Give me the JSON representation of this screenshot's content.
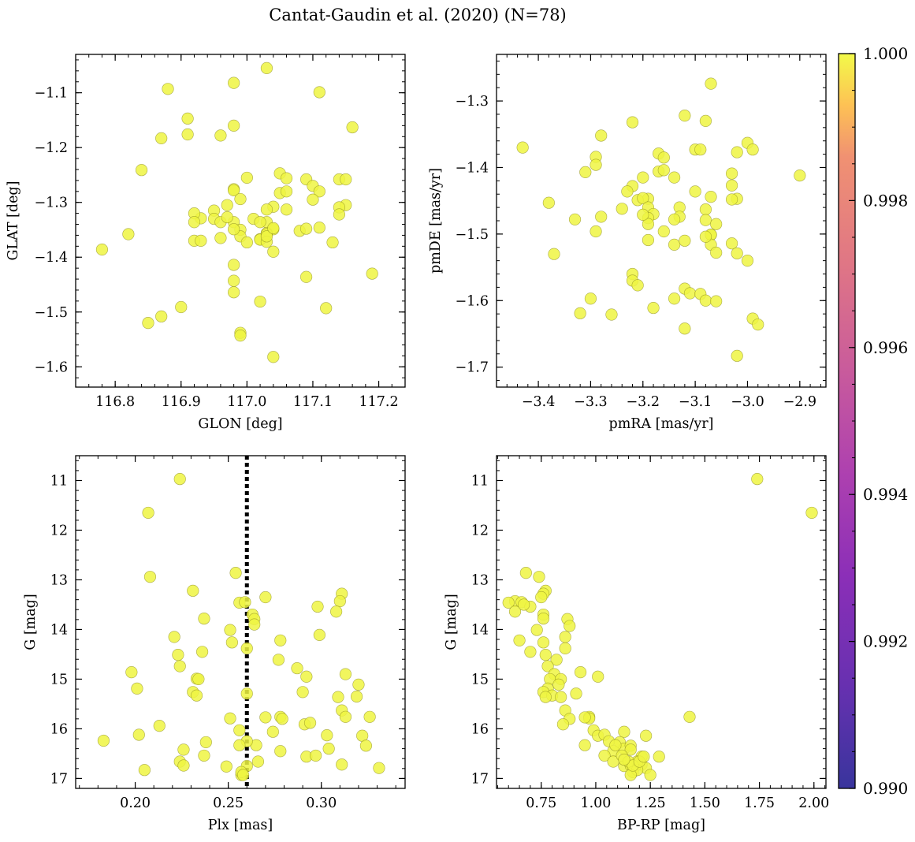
{
  "figure": {
    "suptitle": "Cantat-Gaudin et al. (2020) (N=78)"
  },
  "colors": {
    "point_fill": "#eef542",
    "point_edge": "#8a8a20",
    "axis": "#000000",
    "vline": "#000000"
  },
  "colorbar": {
    "colormap": "plasma",
    "range": [
      0.99,
      1.0
    ],
    "tick_labels": [
      "0.990",
      "0.992",
      "0.994",
      "0.996",
      "0.998",
      "1.000"
    ],
    "tick_values": [
      0.99,
      0.992,
      0.994,
      0.996,
      0.998,
      1.0
    ]
  },
  "chart_data": [
    {
      "type": "scatter",
      "xlabel": "GLON [deg]",
      "ylabel": "GLAT [deg]",
      "xlim": [
        116.74,
        117.24
      ],
      "ylim": [
        -1.637,
        -1.03
      ],
      "y_inverted": false,
      "grid": false,
      "xticks": [
        116.8,
        116.9,
        117.0,
        117.1,
        117.2
      ],
      "xtick_labels": [
        "116.8",
        "116.9",
        "117.0",
        "117.1",
        "117.2"
      ],
      "yticks": [
        -1.6,
        -1.5,
        -1.4,
        -1.3,
        -1.2,
        -1.1
      ],
      "ytick_labels": [
        "−1.6",
        "−1.5",
        "−1.4",
        "−1.3",
        "−1.2",
        "−1.1"
      ],
      "x_minor_step": 0.02,
      "y_minor_step": 0.02,
      "x": [
        117.03,
        116.98,
        116.88,
        117.11,
        116.91,
        117.16,
        116.91,
        116.87,
        116.96,
        116.98,
        116.84,
        116.98,
        117.0,
        117.09,
        117.05,
        117.06,
        117.1,
        117.14,
        117.15,
        116.98,
        116.99,
        117.15,
        117.11,
        116.95,
        117.11,
        116.93,
        116.92,
        117.04,
        117.03,
        117.01,
        116.95,
        117.02,
        117.04,
        116.98,
        116.99,
        117.03,
        116.97,
        117.1,
        117.14,
        117.02,
        116.82,
        117.02,
        116.96,
        117.08,
        116.99,
        117.03,
        116.78,
        117.0,
        117.05,
        117.03,
        116.92,
        116.98,
        116.98,
        117.09,
        117.04,
        116.96,
        116.93,
        116.97,
        117.06,
        117.13,
        117.03,
        116.98,
        117.19,
        116.98,
        117.02,
        117.14,
        116.9,
        116.87,
        116.85,
        116.99,
        117.04,
        116.99,
        116.92,
        117.09,
        117.12,
        117.03,
        117.06,
        117.04
      ],
      "y": [
        -1.055,
        -1.082,
        -1.093,
        -1.099,
        -1.147,
        -1.163,
        -1.176,
        -1.183,
        -1.178,
        -1.16,
        -1.241,
        -1.276,
        -1.255,
        -1.258,
        -1.247,
        -1.256,
        -1.27,
        -1.258,
        -1.258,
        -1.278,
        -1.294,
        -1.305,
        -1.28,
        -1.315,
        -1.346,
        -1.329,
        -1.32,
        -1.308,
        -1.336,
        -1.33,
        -1.33,
        -1.336,
        -1.349,
        -1.336,
        -1.35,
        -1.356,
        -1.305,
        -1.295,
        -1.309,
        -1.367,
        -1.358,
        -1.368,
        -1.365,
        -1.352,
        -1.362,
        -1.358,
        -1.386,
        -1.373,
        -1.283,
        -1.313,
        -1.37,
        -1.349,
        -1.414,
        -1.348,
        -1.39,
        -1.336,
        -1.37,
        -1.327,
        -1.313,
        -1.373,
        -1.372,
        -1.443,
        -1.43,
        -1.464,
        -1.481,
        -1.322,
        -1.491,
        -1.508,
        -1.52,
        -1.538,
        -1.582,
        -1.543,
        -1.336,
        -1.436,
        -1.493,
        -1.362,
        -1.28,
        -1.347
      ]
    },
    {
      "type": "scatter",
      "xlabel": "pmRA [mas/yr]",
      "ylabel": "pmDE [mas/yr]",
      "xlim": [
        -3.48,
        -2.85
      ],
      "ylim": [
        -1.73,
        -1.23
      ],
      "y_inverted": false,
      "grid": false,
      "xticks": [
        -3.4,
        -3.3,
        -3.2,
        -3.1,
        -3.0,
        -2.9
      ],
      "xtick_labels": [
        "−3.4",
        "−3.3",
        "−3.2",
        "−3.1",
        "−3.0",
        "−2.9"
      ],
      "yticks": [
        -1.7,
        -1.6,
        -1.5,
        -1.4,
        -1.3
      ],
      "ytick_labels": [
        "−1.7",
        "−1.6",
        "−1.5",
        "−1.4",
        "−1.3"
      ],
      "x_minor_step": 0.02,
      "y_minor_step": 0.02,
      "x": [
        -3.07,
        -3.43,
        -3.28,
        -3.22,
        -3.12,
        -3.08,
        -3.0,
        -3.02,
        -2.99,
        -3.29,
        -3.29,
        -3.31,
        -3.17,
        -3.16,
        -3.1,
        -3.09,
        -3.03,
        -3.2,
        -3.22,
        -3.23,
        -3.14,
        -3.03,
        -3.17,
        -3.16,
        -3.1,
        -3.02,
        -3.07,
        -3.19,
        -3.21,
        -3.2,
        -3.13,
        -3.19,
        -3.03,
        -3.38,
        -3.24,
        -3.18,
        -3.08,
        -3.13,
        -3.08,
        -3.14,
        -3.19,
        -3.28,
        -3.19,
        -3.16,
        -3.06,
        -3.2,
        -3.07,
        -3.07,
        -2.9,
        -3.33,
        -3.29,
        -3.19,
        -3.37,
        -3.14,
        -3.07,
        -3.06,
        -3.03,
        -3.0,
        -3.12,
        -3.08,
        -3.02,
        -2.99,
        -3.22,
        -3.22,
        -3.21,
        -3.12,
        -3.11,
        -3.09,
        -3.08,
        -3.3,
        -3.06,
        -3.18,
        -3.14,
        -3.32,
        -3.26,
        -3.12,
        -3.02,
        -2.98
      ],
      "y": [
        -1.274,
        -1.37,
        -1.352,
        -1.332,
        -1.322,
        -1.33,
        -1.363,
        -1.377,
        -1.373,
        -1.384,
        -1.396,
        -1.407,
        -1.379,
        -1.385,
        -1.373,
        -1.373,
        -1.409,
        -1.415,
        -1.428,
        -1.436,
        -1.415,
        -1.427,
        -1.406,
        -1.404,
        -1.436,
        -1.447,
        -1.444,
        -1.447,
        -1.449,
        -1.446,
        -1.46,
        -1.46,
        -1.448,
        -1.453,
        -1.462,
        -1.47,
        -1.463,
        -1.474,
        -1.479,
        -1.478,
        -1.476,
        -1.474,
        -1.485,
        -1.496,
        -1.485,
        -1.471,
        -1.501,
        -1.501,
        -1.412,
        -1.478,
        -1.496,
        -1.509,
        -1.53,
        -1.516,
        -1.516,
        -1.528,
        -1.514,
        -1.54,
        -1.51,
        -1.504,
        -1.529,
        -1.627,
        -1.56,
        -1.57,
        -1.577,
        -1.582,
        -1.589,
        -1.59,
        -1.6,
        -1.597,
        -1.601,
        -1.611,
        -1.597,
        -1.619,
        -1.621,
        -1.642,
        -1.683,
        -1.636
      ]
    },
    {
      "type": "scatter",
      "xlabel": "Plx [mas]",
      "ylabel": "G [mag]",
      "xlim": [
        0.168,
        0.345
      ],
      "ylim": [
        17.2,
        10.5
      ],
      "y_inverted": true,
      "grid": false,
      "vline": {
        "x": 0.26,
        "style": "dotted"
      },
      "xticks": [
        0.2,
        0.25,
        0.3
      ],
      "xtick_labels": [
        "0.20",
        "0.25",
        "0.30"
      ],
      "yticks": [
        11,
        12,
        13,
        14,
        15,
        16,
        17
      ],
      "ytick_labels": [
        "11",
        "12",
        "13",
        "14",
        "15",
        "16",
        "17"
      ],
      "x_minor_step": 0.01,
      "y_minor_step": 0.2,
      "x": [
        0.224,
        0.207,
        0.208,
        0.254,
        0.231,
        0.256,
        0.259,
        0.27,
        0.263,
        0.311,
        0.31,
        0.298,
        0.264,
        0.264,
        0.251,
        0.237,
        0.308,
        0.299,
        0.221,
        0.223,
        0.252,
        0.26,
        0.278,
        0.236,
        0.224,
        0.287,
        0.277,
        0.233,
        0.234,
        0.198,
        0.292,
        0.313,
        0.32,
        0.231,
        0.201,
        0.233,
        0.29,
        0.309,
        0.319,
        0.26,
        0.311,
        0.27,
        0.251,
        0.213,
        0.278,
        0.274,
        0.291,
        0.313,
        0.326,
        0.279,
        0.238,
        0.322,
        0.202,
        0.294,
        0.183,
        0.303,
        0.265,
        0.304,
        0.256,
        0.226,
        0.237,
        0.26,
        0.292,
        0.297,
        0.224,
        0.266,
        0.256,
        0.331,
        0.249,
        0.26,
        0.257,
        0.226,
        0.278,
        0.257,
        0.258,
        0.205,
        0.324,
        0.311
      ],
      "y": [
        10.97,
        11.65,
        12.94,
        12.86,
        13.22,
        13.46,
        13.45,
        13.35,
        13.7,
        13.28,
        13.43,
        13.54,
        13.79,
        13.9,
        14.01,
        13.78,
        13.64,
        14.11,
        14.15,
        14.51,
        14.26,
        14.38,
        14.22,
        14.45,
        14.74,
        14.78,
        14.61,
        14.99,
        15.0,
        14.86,
        14.95,
        14.9,
        15.11,
        15.26,
        15.19,
        15.33,
        15.26,
        15.36,
        15.35,
        15.29,
        15.63,
        15.77,
        15.79,
        15.94,
        15.76,
        16.06,
        15.91,
        15.76,
        15.76,
        15.8,
        16.27,
        16.14,
        16.12,
        15.88,
        16.24,
        16.13,
        16.33,
        16.4,
        16.03,
        16.42,
        16.54,
        16.25,
        16.56,
        16.54,
        16.66,
        16.66,
        16.33,
        16.79,
        16.76,
        16.75,
        16.93,
        16.74,
        16.45,
        16.87,
        16.93,
        16.83,
        16.34,
        16.72
      ]
    },
    {
      "type": "scatter",
      "xlabel": "BP-RP [mag]",
      "ylabel": "G [mag]",
      "xlim": [
        0.545,
        2.055
      ],
      "ylim": [
        17.2,
        10.5
      ],
      "y_inverted": true,
      "grid": false,
      "xticks": [
        0.75,
        1.0,
        1.25,
        1.5,
        1.75,
        2.0
      ],
      "xtick_labels": [
        "0.75",
        "1.00",
        "1.25",
        "1.50",
        "1.75",
        "2.00"
      ],
      "yticks": [
        11,
        12,
        13,
        14,
        15,
        16,
        17
      ],
      "ytick_labels": [
        "11",
        "12",
        "13",
        "14",
        "15",
        "16",
        "17"
      ],
      "x_minor_step": 0.05,
      "y_minor_step": 0.2,
      "x": [
        1.74,
        1.99,
        0.68,
        0.74,
        0.77,
        0.76,
        0.75,
        0.63,
        0.66,
        0.7,
        0.6,
        0.63,
        0.67,
        0.76,
        0.76,
        0.87,
        0.73,
        0.86,
        0.86,
        0.65,
        0.76,
        0.7,
        0.77,
        0.82,
        0.78,
        0.81,
        0.93,
        1.01,
        0.79,
        0.84,
        0.83,
        0.78,
        0.76,
        0.8,
        0.91,
        0.77,
        0.84,
        0.86,
        0.97,
        0.97,
        0.95,
        0.88,
        0.85,
        0.99,
        1.01,
        0.95,
        1.04,
        1.13,
        1.23,
        1.06,
        1.11,
        1.13,
        1.16,
        1.08,
        1.43,
        1.09,
        1.04,
        1.21,
        1.16,
        1.08,
        1.13,
        1.21,
        1.16,
        1.18,
        1.23,
        1.17,
        1.19,
        1.29,
        1.12,
        1.19,
        1.15,
        1.25,
        1.16,
        1.17,
        1.2,
        1.13,
        1.22,
        0.88
      ],
      "y": [
        10.97,
        11.65,
        12.86,
        12.94,
        13.22,
        13.28,
        13.35,
        13.43,
        13.45,
        13.54,
        13.46,
        13.64,
        13.5,
        13.7,
        13.78,
        13.79,
        14.01,
        14.15,
        14.38,
        14.22,
        14.26,
        14.45,
        14.51,
        14.61,
        14.74,
        14.9,
        14.86,
        14.95,
        15.0,
        15.0,
        15.11,
        15.19,
        15.26,
        15.33,
        15.29,
        15.36,
        15.36,
        15.63,
        15.76,
        15.79,
        15.77,
        15.8,
        15.91,
        16.03,
        16.14,
        16.33,
        16.12,
        16.06,
        16.14,
        16.25,
        16.27,
        16.4,
        16.34,
        16.45,
        15.76,
        16.33,
        16.54,
        16.56,
        16.42,
        16.66,
        16.75,
        16.72,
        16.74,
        16.76,
        16.79,
        16.87,
        16.66,
        16.56,
        16.54,
        16.83,
        16.66,
        16.93,
        16.93,
        16.74,
        16.66,
        16.62,
        16.56,
        13.93
      ]
    }
  ]
}
